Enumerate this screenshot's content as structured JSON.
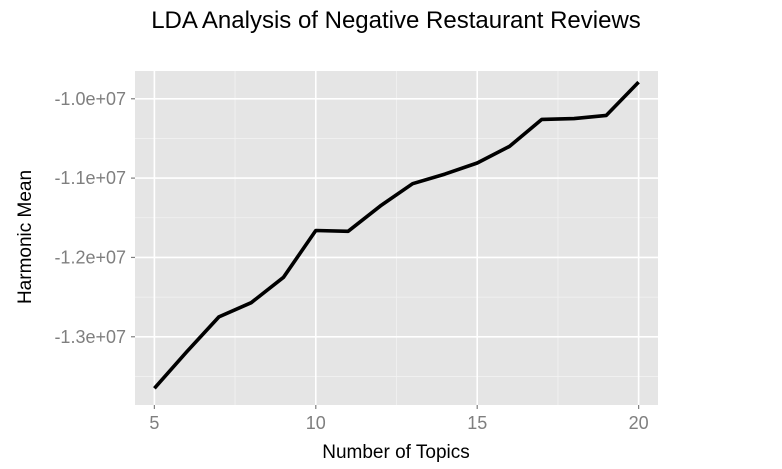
{
  "chart_data": {
    "type": "line",
    "title": "LDA Analysis of Negative Restaurant Reviews",
    "xlabel": "Number of Topics",
    "ylabel": "Harmonic Mean",
    "xlim": [
      4.4,
      20.6
    ],
    "ylim": [
      -13860000,
      -9650000
    ],
    "x_ticks": [
      5,
      10,
      15,
      20
    ],
    "x_tick_labels": [
      "5",
      "10",
      "15",
      "20"
    ],
    "y_ticks": [
      -13000000,
      -12000000,
      -11000000,
      -10000000
    ],
    "y_tick_labels": [
      "-1.3e+07",
      "-1.2e+07",
      "-1.1e+07",
      "-1.0e+07"
    ],
    "grid": true,
    "background": "#e5e5e5",
    "grid_color": "#ffffff",
    "line_color": "#000000",
    "series": [
      {
        "x": [
          5,
          6,
          7,
          8,
          9,
          10,
          11,
          12,
          13,
          14,
          15,
          16,
          17,
          18,
          19,
          20
        ],
        "values": [
          -13650000,
          -13190000,
          -12750000,
          -12570000,
          -12250000,
          -11660000,
          -11670000,
          -11350000,
          -11070000,
          -10950000,
          -10810000,
          -10600000,
          -10260000,
          -10250000,
          -10210000,
          -9790000
        ]
      }
    ]
  }
}
